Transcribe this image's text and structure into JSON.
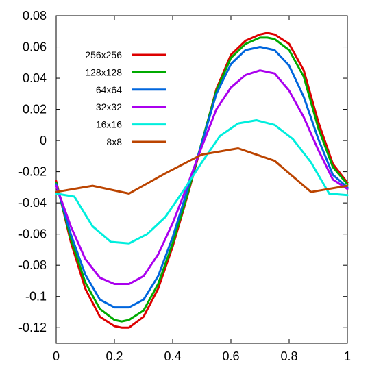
{
  "chart_data": {
    "type": "line",
    "title": "",
    "xlabel": "",
    "ylabel": "",
    "xlim": [
      0,
      1
    ],
    "ylim": [
      -0.13,
      0.08
    ],
    "grid": false,
    "legend_position": "top-left",
    "x_ticks": [
      {
        "value": 0,
        "label": "0"
      },
      {
        "value": 0.2,
        "label": "0.2"
      },
      {
        "value": 0.4,
        "label": "0.4"
      },
      {
        "value": 0.6,
        "label": "0.6"
      },
      {
        "value": 0.8,
        "label": "0.8"
      },
      {
        "value": 1,
        "label": "1"
      }
    ],
    "y_ticks": [
      {
        "value": 0.08,
        "label": "0.08"
      },
      {
        "value": 0.06,
        "label": "0.06"
      },
      {
        "value": 0.04,
        "label": "0.04"
      },
      {
        "value": 0.02,
        "label": "0.02"
      },
      {
        "value": 0,
        "label": "0"
      },
      {
        "value": -0.02,
        "label": "-0.02"
      },
      {
        "value": -0.04,
        "label": "-0.04"
      },
      {
        "value": -0.06,
        "label": "-0.06"
      },
      {
        "value": -0.08,
        "label": "-0.08"
      },
      {
        "value": -0.1,
        "label": "-0.1"
      },
      {
        "value": -0.12,
        "label": "-0.12"
      }
    ],
    "series": [
      {
        "name": "256x256",
        "color": "#dd0000",
        "x": [
          0,
          0.05,
          0.1,
          0.15,
          0.2,
          0.225,
          0.25,
          0.3,
          0.35,
          0.4,
          0.45,
          0.5,
          0.55,
          0.6,
          0.65,
          0.7,
          0.725,
          0.75,
          0.8,
          0.85,
          0.9,
          0.95,
          1
        ],
        "y": [
          -0.026,
          -0.065,
          -0.095,
          -0.113,
          -0.119,
          -0.12,
          -0.12,
          -0.113,
          -0.095,
          -0.068,
          -0.036,
          -0.002,
          0.033,
          0.055,
          0.064,
          0.068,
          0.069,
          0.068,
          0.062,
          0.045,
          0.012,
          -0.015,
          -0.027
        ]
      },
      {
        "name": "128x128",
        "color": "#00aa00",
        "x": [
          0,
          0.05,
          0.1,
          0.15,
          0.2,
          0.225,
          0.25,
          0.3,
          0.35,
          0.4,
          0.45,
          0.5,
          0.55,
          0.6,
          0.65,
          0.7,
          0.725,
          0.75,
          0.8,
          0.85,
          0.9,
          0.95,
          1
        ],
        "y": [
          -0.027,
          -0.063,
          -0.091,
          -0.108,
          -0.115,
          -0.116,
          -0.115,
          -0.109,
          -0.092,
          -0.066,
          -0.035,
          -0.001,
          0.032,
          0.053,
          0.062,
          0.066,
          0.066,
          0.065,
          0.058,
          0.041,
          0.008,
          -0.017,
          -0.028
        ]
      },
      {
        "name": "64x64",
        "color": "#0066dd",
        "x": [
          0,
          0.05,
          0.1,
          0.15,
          0.2,
          0.25,
          0.3,
          0.35,
          0.4,
          0.45,
          0.5,
          0.55,
          0.6,
          0.65,
          0.7,
          0.75,
          0.8,
          0.85,
          0.9,
          0.95,
          1
        ],
        "y": [
          -0.028,
          -0.06,
          -0.086,
          -0.102,
          -0.107,
          -0.107,
          -0.102,
          -0.087,
          -0.062,
          -0.032,
          -0.002,
          0.03,
          0.049,
          0.058,
          0.06,
          0.058,
          0.048,
          0.028,
          0.001,
          -0.022,
          -0.03
        ]
      },
      {
        "name": "32x32",
        "color": "#aa00ee",
        "x": [
          0,
          0.05,
          0.1,
          0.15,
          0.2,
          0.25,
          0.3,
          0.35,
          0.4,
          0.45,
          0.5,
          0.55,
          0.6,
          0.65,
          0.7,
          0.75,
          0.8,
          0.85,
          0.9,
          0.95,
          1
        ],
        "y": [
          -0.029,
          -0.055,
          -0.076,
          -0.088,
          -0.092,
          -0.092,
          -0.087,
          -0.073,
          -0.053,
          -0.029,
          -0.004,
          0.02,
          0.034,
          0.042,
          0.045,
          0.043,
          0.032,
          0.015,
          -0.006,
          -0.025,
          -0.031
        ]
      },
      {
        "name": "16x16",
        "color": "#00eedd",
        "x": [
          0,
          0.0625,
          0.125,
          0.1875,
          0.25,
          0.3125,
          0.375,
          0.4375,
          0.5,
          0.5625,
          0.625,
          0.6875,
          0.75,
          0.8125,
          0.875,
          0.9375,
          1
        ],
        "y": [
          -0.034,
          -0.036,
          -0.055,
          -0.065,
          -0.066,
          -0.06,
          -0.049,
          -0.032,
          -0.014,
          0.003,
          0.011,
          0.013,
          0.01,
          0.001,
          -0.014,
          -0.034,
          -0.035
        ]
      },
      {
        "name": "8x8",
        "color": "#bb4400",
        "x": [
          0,
          0.125,
          0.25,
          0.375,
          0.5,
          0.625,
          0.75,
          0.875,
          1
        ],
        "y": [
          -0.033,
          -0.029,
          -0.034,
          -0.021,
          -0.009,
          -0.005,
          -0.013,
          -0.033,
          -0.029
        ]
      }
    ]
  }
}
